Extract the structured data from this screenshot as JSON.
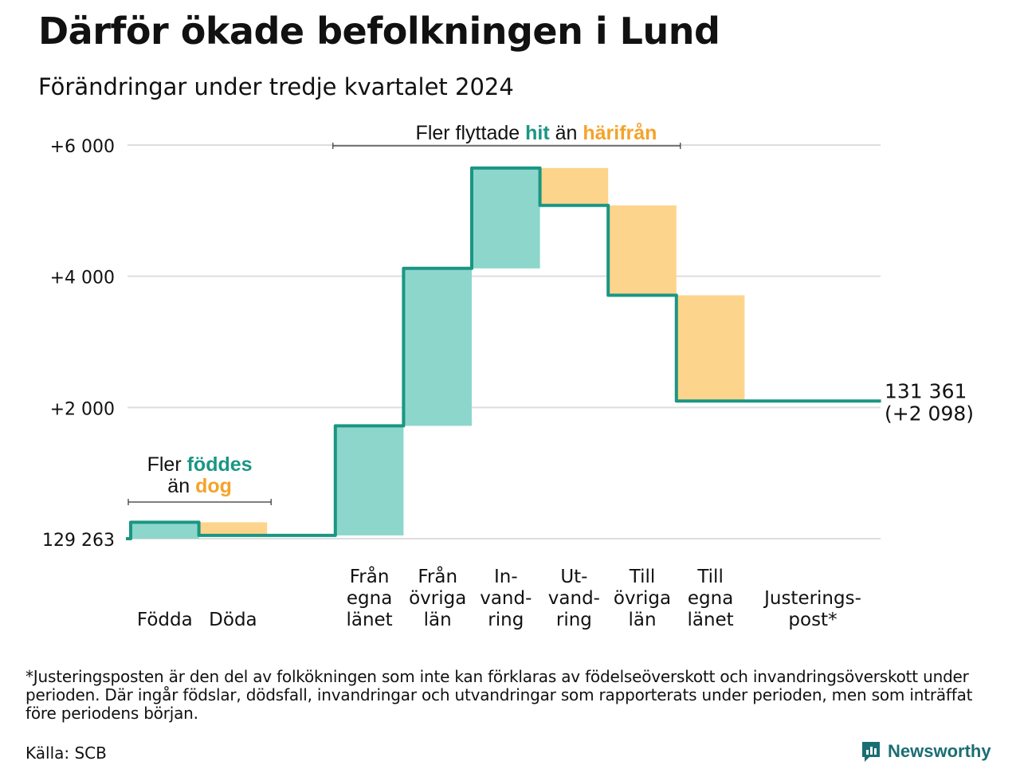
{
  "title": "Därför ökade befolkningen i Lund",
  "subtitle": "Förändringar under tredje kvartalet 2024",
  "colors": {
    "increase_fill": "#8dd6cc",
    "decrease_fill": "#fcd48c",
    "line": "#1a9683",
    "teal_text": "#1a9683",
    "orange_text": "#f4a32b",
    "grid": "#dddddd",
    "brand": "#1a6e73"
  },
  "chart_data": {
    "type": "waterfall",
    "base_value": 129263,
    "yticks": [
      {
        "value": 0,
        "label": "129 263"
      },
      {
        "value": 2000,
        "label": "+2 000"
      },
      {
        "value": 4000,
        "label": "+4 000"
      },
      {
        "value": 6000,
        "label": "+6 000"
      }
    ],
    "ylim": [
      0,
      6000
    ],
    "steps": [
      {
        "label": [
          "Födda"
        ],
        "change": 250,
        "kind": "increase"
      },
      {
        "label": [
          "Döda"
        ],
        "change": -200,
        "kind": "decrease"
      },
      {
        "label": [],
        "change": 0,
        "kind": "gap"
      },
      {
        "label": [
          "Från",
          "egna",
          "länet"
        ],
        "change": 1670,
        "kind": "increase"
      },
      {
        "label": [
          "Från",
          "övriga",
          "län"
        ],
        "change": 2400,
        "kind": "increase"
      },
      {
        "label": [
          "In-",
          "vand-",
          "ring"
        ],
        "change": 1530,
        "kind": "increase"
      },
      {
        "label": [
          "Ut-",
          "vand-",
          "ring"
        ],
        "change": -570,
        "kind": "decrease"
      },
      {
        "label": [
          "Till",
          "övriga",
          "län"
        ],
        "change": -1370,
        "kind": "decrease"
      },
      {
        "label": [
          "Till",
          "egna",
          "länet"
        ],
        "change": -1612,
        "kind": "decrease"
      },
      {
        "label": [
          "Justerings-",
          "post*"
        ],
        "change": 0,
        "kind": "adjustment",
        "wide": true
      }
    ],
    "end_label": [
      "131 361",
      "(+2 098)"
    ],
    "annotations": {
      "births": {
        "line1_prefix": "Fler ",
        "line1_highlight": "föddes",
        "line2_prefix": "än ",
        "line2_highlight": "dog"
      },
      "migration": {
        "prefix": "Fler flyttade ",
        "highlight1": "hit",
        "middle": " än ",
        "highlight2": "härifrån"
      }
    }
  },
  "footnote": "*Justeringsposten är den del av folkökningen som inte kan förklaras av födelseöverskott och invandringsöverskott under perioden. Där ingår födslar, dödsfall, invandringar och utvandringar som rapporterats under perioden, men som inträffat före periodens början.",
  "source": "Källa: SCB",
  "brand": {
    "name": "Newsworthy",
    "icon": "bar-chart-speech-bubble-icon"
  }
}
